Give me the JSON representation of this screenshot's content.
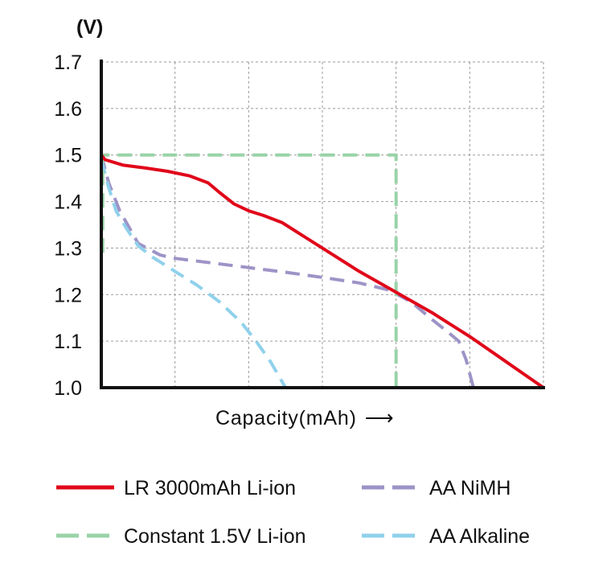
{
  "chart_data": {
    "type": "line",
    "title": "",
    "ylabel": "(V)",
    "xlabel": "Capacity(mAh)",
    "xlabel_arrow": "⟶",
    "ylim": [
      1.0,
      1.7
    ],
    "yticks": [
      "1.7",
      "1.6",
      "1.5",
      "1.4",
      "1.3",
      "1.2",
      "1.1",
      "1.0"
    ],
    "ytick_values": [
      1.7,
      1.6,
      1.5,
      1.4,
      1.3,
      1.2,
      1.1,
      1.0
    ],
    "xlim": [
      0,
      6
    ],
    "x_grid_divisions": 6,
    "grid": true,
    "grid_style": "dotted",
    "legend_position": "bottom",
    "series": [
      {
        "name": "LR 3000mAh Li-ion",
        "color": "#e0071a",
        "style": "solid",
        "points": [
          [
            0,
            1.5
          ],
          [
            0.05,
            1.49
          ],
          [
            0.3,
            1.478
          ],
          [
            0.6,
            1.472
          ],
          [
            0.9,
            1.465
          ],
          [
            1.2,
            1.455
          ],
          [
            1.45,
            1.44
          ],
          [
            1.6,
            1.42
          ],
          [
            1.8,
            1.395
          ],
          [
            2.0,
            1.38
          ],
          [
            2.2,
            1.37
          ],
          [
            2.45,
            1.355
          ],
          [
            2.7,
            1.33
          ],
          [
            3.0,
            1.3
          ],
          [
            3.5,
            1.25
          ],
          [
            4.0,
            1.205
          ],
          [
            4.5,
            1.16
          ],
          [
            5.0,
            1.11
          ],
          [
            5.5,
            1.055
          ],
          [
            6.0,
            1.0
          ]
        ]
      },
      {
        "name": "AA NiMH",
        "color": "#9e93c7",
        "style": "dashed",
        "points": [
          [
            0,
            1.5
          ],
          [
            0.1,
            1.44
          ],
          [
            0.25,
            1.38
          ],
          [
            0.5,
            1.31
          ],
          [
            0.8,
            1.285
          ],
          [
            1.0,
            1.278
          ],
          [
            1.5,
            1.268
          ],
          [
            2.0,
            1.258
          ],
          [
            2.5,
            1.248
          ],
          [
            3.0,
            1.237
          ],
          [
            3.5,
            1.225
          ],
          [
            3.9,
            1.21
          ],
          [
            4.2,
            1.185
          ],
          [
            4.5,
            1.145
          ],
          [
            4.7,
            1.12
          ],
          [
            4.85,
            1.1
          ],
          [
            4.95,
            1.06
          ],
          [
            5.05,
            1.0
          ]
        ]
      },
      {
        "name": "Constant 1.5V Li-ion",
        "color": "#99d3a8",
        "style": "dashed",
        "points": [
          [
            0.02,
            1.29
          ],
          [
            0.02,
            1.5
          ],
          [
            4.0,
            1.5
          ],
          [
            4.0,
            1.0
          ]
        ]
      },
      {
        "name": "AA Alkaline",
        "color": "#90d1ec",
        "style": "dashed",
        "points": [
          [
            0,
            1.49
          ],
          [
            0.1,
            1.43
          ],
          [
            0.2,
            1.38
          ],
          [
            0.35,
            1.34
          ],
          [
            0.5,
            1.305
          ],
          [
            0.7,
            1.28
          ],
          [
            1.0,
            1.25
          ],
          [
            1.3,
            1.22
          ],
          [
            1.6,
            1.185
          ],
          [
            1.9,
            1.14
          ],
          [
            2.1,
            1.1
          ],
          [
            2.3,
            1.055
          ],
          [
            2.5,
            1.0
          ]
        ]
      }
    ]
  }
}
